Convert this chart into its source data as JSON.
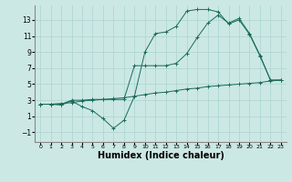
{
  "bg_color": "#cce8e4",
  "line_color": "#1a6b5a",
  "grid_color": "#aad4d0",
  "xlabel": "Humidex (Indice chaleur)",
  "xlabel_fontsize": 7,
  "xlim": [
    -0.5,
    23.5
  ],
  "ylim": [
    -2.2,
    14.8
  ],
  "yticks": [
    -1,
    1,
    3,
    5,
    7,
    9,
    11,
    13
  ],
  "xticks": [
    0,
    1,
    2,
    3,
    4,
    5,
    6,
    7,
    8,
    9,
    10,
    11,
    12,
    13,
    14,
    15,
    16,
    17,
    18,
    19,
    20,
    21,
    22,
    23
  ],
  "line1_x": [
    0,
    1,
    2,
    3,
    4,
    5,
    6,
    7,
    8,
    9,
    10,
    11,
    12,
    13,
    14,
    15,
    16,
    17,
    18,
    19,
    20,
    21,
    22,
    23
  ],
  "line1_y": [
    2.5,
    2.5,
    2.6,
    2.7,
    2.9,
    3.0,
    3.1,
    3.2,
    3.3,
    3.5,
    3.7,
    3.9,
    4.0,
    4.2,
    4.4,
    4.5,
    4.7,
    4.8,
    4.9,
    5.0,
    5.1,
    5.2,
    5.4,
    5.5
  ],
  "line2_x": [
    0,
    1,
    2,
    3,
    4,
    5,
    6,
    7,
    8,
    9,
    10,
    11,
    12,
    13,
    14,
    15,
    16,
    17,
    18,
    19,
    20,
    21,
    22,
    23
  ],
  "line2_y": [
    2.5,
    2.5,
    2.4,
    2.9,
    2.2,
    1.7,
    0.7,
    -0.5,
    0.5,
    3.5,
    9.0,
    11.3,
    11.5,
    12.2,
    14.1,
    14.3,
    14.3,
    14.0,
    12.5,
    13.0,
    11.2,
    8.5,
    5.5,
    5.5
  ],
  "line3_x": [
    0,
    1,
    2,
    3,
    4,
    5,
    6,
    7,
    8,
    9,
    10,
    11,
    12,
    13,
    14,
    15,
    16,
    17,
    18,
    19,
    20,
    21,
    22,
    23
  ],
  "line3_y": [
    2.5,
    2.5,
    2.5,
    3.0,
    3.0,
    3.1,
    3.1,
    3.1,
    3.1,
    7.3,
    7.3,
    7.3,
    7.3,
    7.6,
    8.8,
    10.8,
    12.6,
    13.6,
    12.6,
    13.2,
    11.3,
    8.6,
    5.5,
    5.5
  ]
}
